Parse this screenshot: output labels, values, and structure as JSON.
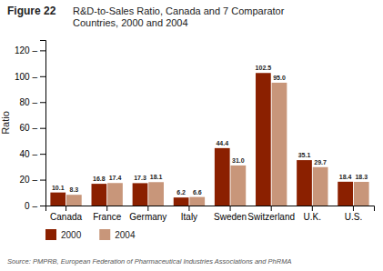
{
  "chart_data": {
    "type": "bar",
    "title": "Figure 22",
    "subtitle": "R&D-to-Sales Ratio, Canada and 7 Comparator\nCountries, 2000 and 2004",
    "y_label": "Ratio",
    "categories": [
      "Canada",
      "France",
      "Germany",
      "Italy",
      "Sweden",
      "Switzerland",
      "U.K.",
      "U.S."
    ],
    "series": [
      {
        "name": "2000",
        "color": "#8B2000",
        "values": [
          10.1,
          16.8,
          17.3,
          6.2,
          44.4,
          102.5,
          35.1,
          18.4
        ],
        "value_labels": [
          "10.1",
          "16.8",
          "17.3",
          "6.2",
          "44.4",
          "102.5",
          "35.1",
          "18.4"
        ]
      },
      {
        "name": "2004",
        "color": "#C8967A",
        "values": [
          8.3,
          17.4,
          18.1,
          6.6,
          31.0,
          95.0,
          29.7,
          18.3
        ],
        "value_labels": [
          "8.3",
          "17.4",
          "18.1",
          "6.6",
          "31.0",
          "95.0",
          "29.7",
          "18.3"
        ]
      }
    ],
    "ylim": [
      0,
      128
    ],
    "yticks": [
      {
        "value": 0,
        "label": "0 –"
      },
      {
        "value": 20,
        "label": "20 –"
      },
      {
        "value": 40,
        "label": "40 –"
      },
      {
        "value": 60,
        "label": "60 –"
      },
      {
        "value": 80,
        "label": "80 –"
      },
      {
        "value": 100,
        "label": "100 –"
      },
      {
        "value": 120,
        "label": "120 –"
      }
    ],
    "data_labels": true,
    "grid": false,
    "legend": "bottom",
    "annotations": [
      "Source: PMPRB, European Federation of Pharmaceutical Industries Associations and PhRMA"
    ]
  }
}
